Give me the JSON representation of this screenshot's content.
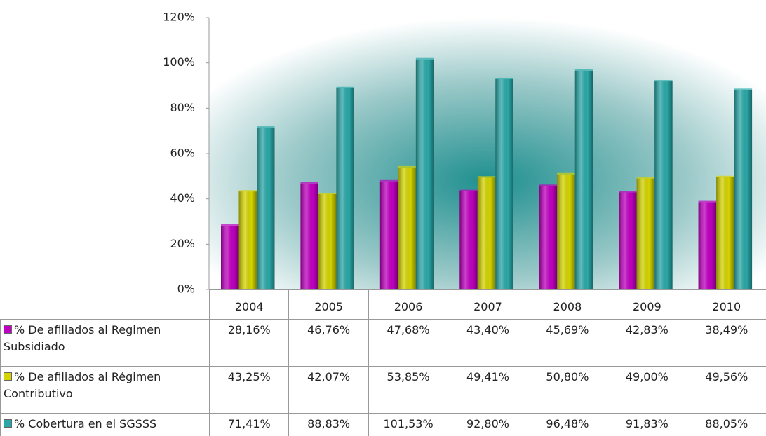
{
  "chart_data": {
    "type": "bar",
    "categories": [
      "2004",
      "2005",
      "2006",
      "2007",
      "2008",
      "2009",
      "2010"
    ],
    "series": [
      {
        "name": "% De afiliados al Regimen Subsidiado",
        "color": "#c000c0",
        "values": [
          28.16,
          46.76,
          47.68,
          43.4,
          45.69,
          42.83,
          38.49
        ],
        "value_labels": [
          "28,16%",
          "46,76%",
          "47,68%",
          "43,40%",
          "45,69%",
          "42,83%",
          "38,49%"
        ]
      },
      {
        "name": "% De afiliados al Régimen Contributivo",
        "color": "#d4d400",
        "values": [
          43.25,
          42.07,
          53.85,
          49.41,
          50.8,
          49.0,
          49.56
        ],
        "value_labels": [
          "43,25%",
          "42,07%",
          "53,85%",
          "49,41%",
          "50,80%",
          "49,00%",
          "49,56%"
        ]
      },
      {
        "name": "% Cobertura en el SGSSS",
        "color": "#2aa8a8",
        "values": [
          71.41,
          88.83,
          101.53,
          92.8,
          96.48,
          91.83,
          88.05
        ],
        "value_labels": [
          "71,41%",
          "88,83%",
          "101,53%",
          "92,80%",
          "96,48%",
          "91,83%",
          "88,05%"
        ]
      }
    ],
    "ylim": [
      0,
      120
    ],
    "yticks": [
      {
        "value": 0,
        "label": "0%"
      },
      {
        "value": 20,
        "label": "20%"
      },
      {
        "value": 40,
        "label": "40%"
      },
      {
        "value": 60,
        "label": "60%"
      },
      {
        "value": 80,
        "label": "80%"
      },
      {
        "value": 100,
        "label": "100%"
      },
      {
        "value": 120,
        "label": "120%"
      }
    ],
    "legend": "table"
  }
}
